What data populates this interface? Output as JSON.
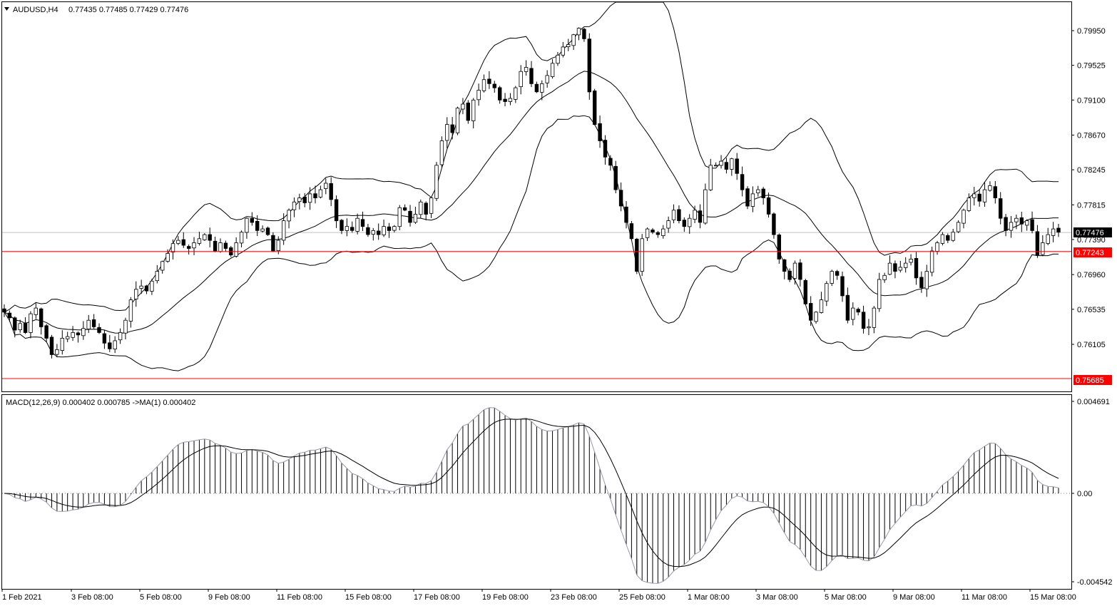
{
  "header": {
    "symbol": "AUDUSD,H4",
    "ohlc": "0.77435 0.77485 0.77429 0.77476"
  },
  "macd_panel": {
    "label": "MACD(12,26,9) 0.000402 0.000785  ->MA(1) 0.000402"
  },
  "price_axis": {
    "ticks": [
      "0.79950",
      "0.79525",
      "0.79100",
      "0.78670",
      "0.78245",
      "0.77815",
      "0.77390",
      "0.76960",
      "0.76535",
      "0.76105"
    ],
    "current_price": "0.77476",
    "level_upper": "0.77243",
    "level_lower": "0.75685"
  },
  "macd_axis": {
    "ticks": [
      "0.004691",
      "0.00",
      "-0.004542"
    ]
  },
  "time_axis": {
    "labels": [
      "1 Feb 2021",
      "3 Feb 08:00",
      "5 Feb 08:00",
      "9 Feb 08:00",
      "11 Feb 08:00",
      "15 Feb 08:00",
      "17 Feb 08:00",
      "19 Feb 08:00",
      "23 Feb 08:00",
      "25 Feb 08:00",
      "1 Mar 08:00",
      "3 Mar 08:00",
      "5 Mar 08:00",
      "9 Mar 08:00",
      "11 Mar 08:00",
      "15 Mar 08:00"
    ]
  },
  "colors": {
    "background": "#ffffff",
    "candle_bull_fill": "#ffffff",
    "candle_bear_fill": "#000000",
    "level_line": "#ff0000",
    "current_tag": "#000000",
    "level_tag": "#ff0000"
  },
  "chart_data": [
    {
      "type": "candlestick",
      "title": "AUDUSD,H4",
      "indicator": "Bollinger Bands",
      "ylim": [
        0.7555,
        0.8025
      ],
      "horizontal_levels": [
        0.77243,
        0.75685
      ],
      "current_price": 0.77476,
      "close_series": [
        0.765,
        0.7643,
        0.7628,
        0.7636,
        0.7625,
        0.7648,
        0.7655,
        0.7632,
        0.7618,
        0.7598,
        0.7604,
        0.7618,
        0.762,
        0.7625,
        0.7622,
        0.763,
        0.764,
        0.7632,
        0.7625,
        0.7612,
        0.7605,
        0.7615,
        0.7625,
        0.764,
        0.7665,
        0.7678,
        0.7682,
        0.7676,
        0.7688,
        0.77,
        0.7712,
        0.7722,
        0.7734,
        0.7738,
        0.7732,
        0.7728,
        0.7735,
        0.774,
        0.7745,
        0.7738,
        0.7725,
        0.7735,
        0.7728,
        0.772,
        0.7735,
        0.7748,
        0.7765,
        0.776,
        0.775,
        0.7752,
        0.7745,
        0.7725,
        0.7738,
        0.7762,
        0.7775,
        0.7785,
        0.779,
        0.7784,
        0.7795,
        0.779,
        0.78,
        0.7808,
        0.7788,
        0.7762,
        0.775,
        0.7755,
        0.775,
        0.7765,
        0.7755,
        0.7745,
        0.775,
        0.7745,
        0.7755,
        0.775,
        0.7755,
        0.7778,
        0.7775,
        0.776,
        0.777,
        0.7785,
        0.777,
        0.779,
        0.783,
        0.786,
        0.788,
        0.787,
        0.79,
        0.7905,
        0.7885,
        0.791,
        0.7922,
        0.7935,
        0.793,
        0.7925,
        0.791,
        0.7908,
        0.7912,
        0.7925,
        0.7945,
        0.795,
        0.793,
        0.792,
        0.793,
        0.794,
        0.7955,
        0.7965,
        0.7975,
        0.7978,
        0.799,
        0.7998,
        0.7985,
        0.792,
        0.788,
        0.786,
        0.784,
        0.783,
        0.78,
        0.778,
        0.776,
        0.774,
        0.77,
        0.774,
        0.7752,
        0.7748,
        0.7745,
        0.7752,
        0.7762,
        0.7775,
        0.7762,
        0.7755,
        0.7765,
        0.7775,
        0.776,
        0.78,
        0.783,
        0.783,
        0.7835,
        0.7825,
        0.7838,
        0.782,
        0.78,
        0.778,
        0.7795,
        0.78,
        0.779,
        0.777,
        0.7745,
        0.7715,
        0.77,
        0.769,
        0.771,
        0.769,
        0.766,
        0.764,
        0.765,
        0.7665,
        0.7685,
        0.77,
        0.7695,
        0.767,
        0.764,
        0.7655,
        0.765,
        0.763,
        0.7632,
        0.7655,
        0.769,
        0.7695,
        0.771,
        0.77,
        0.7705,
        0.771,
        0.7715,
        0.7692,
        0.768,
        0.77,
        0.7725,
        0.7735,
        0.7745,
        0.7738,
        0.7748,
        0.776,
        0.7775,
        0.779,
        0.7795,
        0.7786,
        0.78,
        0.7805,
        0.779,
        0.7765,
        0.775,
        0.776,
        0.7765,
        0.7758,
        0.7762,
        0.775,
        0.772,
        0.7735,
        0.7745,
        0.7752,
        0.7748
      ]
    },
    {
      "type": "bar",
      "title": "MACD(12,26,9) 0.000402 0.000785  ->MA(1) 0.000402",
      "ylim": [
        -0.004542,
        0.004691
      ],
      "signal_value": 0.000785,
      "last_value": 0.000402
    }
  ]
}
